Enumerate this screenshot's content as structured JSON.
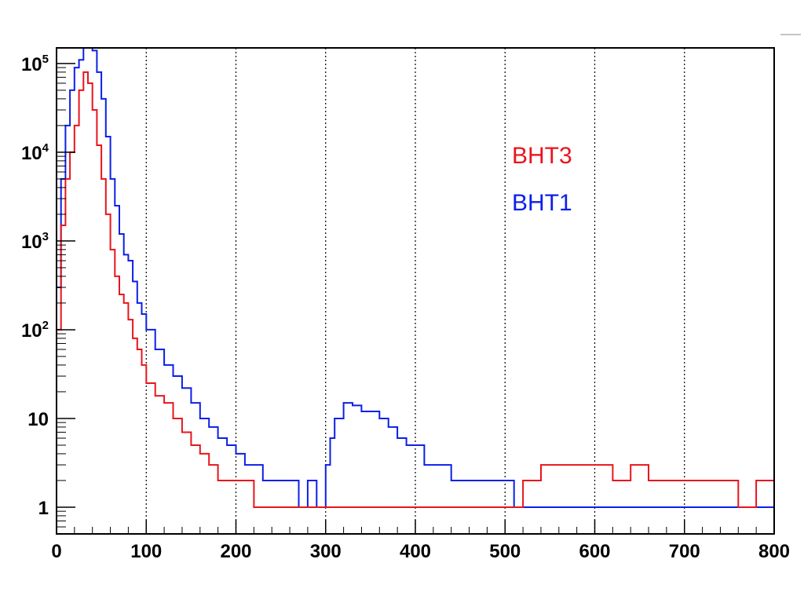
{
  "chart_data": {
    "type": "line",
    "title": "",
    "xlabel": "",
    "ylabel": "",
    "xlim": [
      0,
      800
    ],
    "ylim": [
      0.5,
      150000
    ],
    "y_scale": "log",
    "grid": "vertical dotted lines at x ticks",
    "legend_placement": "upper-middle-right",
    "x_ticks": [
      {
        "value": 0,
        "label": "0"
      },
      {
        "value": 100,
        "label": "100"
      },
      {
        "value": 200,
        "label": "200"
      },
      {
        "value": 300,
        "label": "300"
      },
      {
        "value": 400,
        "label": "400"
      },
      {
        "value": 500,
        "label": "500"
      },
      {
        "value": 600,
        "label": "600"
      },
      {
        "value": 700,
        "label": "700"
      },
      {
        "value": 800,
        "label": "800"
      }
    ],
    "y_ticks": [
      {
        "value": 1,
        "label": "1"
      },
      {
        "value": 10,
        "label": "10"
      },
      {
        "value": 100,
        "label": "10",
        "exp": "2"
      },
      {
        "value": 1000,
        "label": "10",
        "exp": "3"
      },
      {
        "value": 10000,
        "label": "10",
        "exp": "4"
      },
      {
        "value": 100000,
        "label": "10",
        "exp": "5"
      }
    ],
    "series": [
      {
        "name": "BHT1",
        "color": "#0b1fe8",
        "points": [
          [
            0,
            300
          ],
          [
            5,
            5000
          ],
          [
            10,
            20000
          ],
          [
            15,
            50000
          ],
          [
            20,
            90000
          ],
          [
            25,
            110000
          ],
          [
            30,
            150000
          ],
          [
            35,
            150000
          ],
          [
            40,
            140000
          ],
          [
            45,
            80000
          ],
          [
            50,
            40000
          ],
          [
            55,
            15000
          ],
          [
            60,
            5000
          ],
          [
            65,
            2500
          ],
          [
            70,
            1200
          ],
          [
            75,
            700
          ],
          [
            80,
            600
          ],
          [
            85,
            350
          ],
          [
            90,
            200
          ],
          [
            95,
            150
          ],
          [
            100,
            100
          ],
          [
            110,
            60
          ],
          [
            120,
            40
          ],
          [
            130,
            30
          ],
          [
            140,
            22
          ],
          [
            150,
            15
          ],
          [
            160,
            10
          ],
          [
            170,
            8
          ],
          [
            180,
            6
          ],
          [
            190,
            5
          ],
          [
            200,
            4
          ],
          [
            210,
            3
          ],
          [
            220,
            3
          ],
          [
            230,
            2
          ],
          [
            240,
            2
          ],
          [
            250,
            2
          ],
          [
            260,
            2
          ],
          [
            270,
            1
          ],
          [
            280,
            2
          ],
          [
            290,
            1
          ],
          [
            300,
            3
          ],
          [
            305,
            6
          ],
          [
            310,
            10
          ],
          [
            320,
            15
          ],
          [
            330,
            14
          ],
          [
            340,
            12
          ],
          [
            350,
            12
          ],
          [
            360,
            10
          ],
          [
            370,
            8
          ],
          [
            380,
            6
          ],
          [
            390,
            5
          ],
          [
            400,
            5
          ],
          [
            410,
            3
          ],
          [
            420,
            3
          ],
          [
            430,
            3
          ],
          [
            440,
            2
          ],
          [
            450,
            2
          ],
          [
            460,
            2
          ],
          [
            470,
            2
          ],
          [
            480,
            2
          ],
          [
            490,
            2
          ],
          [
            500,
            2
          ],
          [
            510,
            1
          ],
          [
            520,
            1
          ],
          [
            530,
            1
          ],
          [
            540,
            1
          ],
          [
            550,
            1
          ],
          [
            560,
            1
          ],
          [
            570,
            1
          ],
          [
            580,
            1
          ],
          [
            590,
            1
          ],
          [
            600,
            1
          ],
          [
            620,
            1
          ],
          [
            640,
            1
          ],
          [
            660,
            1
          ],
          [
            680,
            1
          ],
          [
            700,
            1
          ],
          [
            720,
            1
          ],
          [
            740,
            1
          ],
          [
            760,
            1
          ],
          [
            780,
            1
          ],
          [
            800,
            1
          ]
        ]
      },
      {
        "name": "BHT3",
        "color": "#e8141c",
        "points": [
          [
            0,
            100
          ],
          [
            5,
            1500
          ],
          [
            10,
            5000
          ],
          [
            15,
            10000
          ],
          [
            20,
            20000
          ],
          [
            25,
            50000
          ],
          [
            30,
            80000
          ],
          [
            35,
            60000
          ],
          [
            40,
            30000
          ],
          [
            45,
            12000
          ],
          [
            50,
            5000
          ],
          [
            55,
            2000
          ],
          [
            60,
            800
          ],
          [
            65,
            400
          ],
          [
            70,
            250
          ],
          [
            75,
            200
          ],
          [
            80,
            130
          ],
          [
            85,
            80
          ],
          [
            90,
            60
          ],
          [
            95,
            40
          ],
          [
            100,
            25
          ],
          [
            110,
            18
          ],
          [
            120,
            15
          ],
          [
            130,
            10
          ],
          [
            140,
            7
          ],
          [
            150,
            5
          ],
          [
            160,
            4
          ],
          [
            170,
            3
          ],
          [
            180,
            2
          ],
          [
            190,
            2
          ],
          [
            200,
            2
          ],
          [
            220,
            1
          ],
          [
            240,
            1
          ],
          [
            260,
            1
          ],
          [
            280,
            1
          ],
          [
            300,
            1
          ],
          [
            320,
            1
          ],
          [
            340,
            1
          ],
          [
            360,
            1
          ],
          [
            380,
            1
          ],
          [
            400,
            1
          ],
          [
            420,
            1
          ],
          [
            440,
            1
          ],
          [
            460,
            1
          ],
          [
            480,
            1
          ],
          [
            500,
            1
          ],
          [
            520,
            2
          ],
          [
            540,
            3
          ],
          [
            560,
            3
          ],
          [
            580,
            3
          ],
          [
            600,
            3
          ],
          [
            620,
            2
          ],
          [
            640,
            3
          ],
          [
            660,
            2
          ],
          [
            680,
            2
          ],
          [
            700,
            2
          ],
          [
            720,
            2
          ],
          [
            740,
            2
          ],
          [
            760,
            1
          ],
          [
            780,
            2
          ],
          [
            800,
            1
          ]
        ]
      }
    ]
  }
}
